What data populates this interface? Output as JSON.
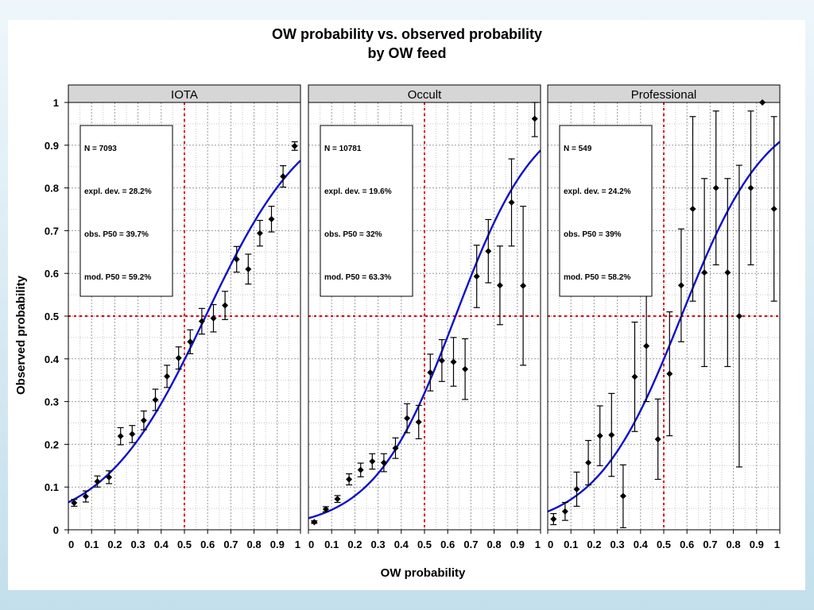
{
  "chart_data": {
    "type": "scatter",
    "title": "OW  probability vs. observed probability",
    "subtitle": "by OW feed",
    "xlabel": "OW probability",
    "ylabel": "Observed probability",
    "xlim": [
      0,
      1
    ],
    "ylim": [
      0,
      1
    ],
    "x_ticks": [
      "0",
      "0.1",
      "0.2",
      "0.3",
      "0.4",
      "0.5",
      "0.6",
      "0.7",
      "0.8",
      "0.9",
      "1"
    ],
    "y_ticks": [
      "0",
      "0.1",
      "0.2",
      "0.3",
      "0.4",
      "0.5",
      "0.6",
      "0.7",
      "0.8",
      "0.9",
      "1"
    ],
    "grid": true,
    "reference_lines": {
      "x": 0.5,
      "y": 0.5,
      "color": "#e00000"
    },
    "colors": {
      "points": "#000000",
      "curve": "#1010c8",
      "strip": "#d6d6d6",
      "reference": "#e00000"
    },
    "panels": [
      {
        "name": "IOTA",
        "stats": [
          "N = 7093",
          "expl. dev. = 28.2%",
          "obs. P50 = 39.7%",
          "mod. P50 = 59.2%"
        ],
        "curve": {
          "intercept": -2.68,
          "slope": 4.53
        },
        "points": [
          {
            "x": 0.025,
            "y": 0.063,
            "lo": 0.055,
            "hi": 0.071
          },
          {
            "x": 0.075,
            "y": 0.078,
            "lo": 0.065,
            "hi": 0.091
          },
          {
            "x": 0.125,
            "y": 0.113,
            "lo": 0.1,
            "hi": 0.126
          },
          {
            "x": 0.175,
            "y": 0.123,
            "lo": 0.108,
            "hi": 0.138
          },
          {
            "x": 0.225,
            "y": 0.219,
            "lo": 0.199,
            "hi": 0.239
          },
          {
            "x": 0.275,
            "y": 0.224,
            "lo": 0.204,
            "hi": 0.244
          },
          {
            "x": 0.325,
            "y": 0.256,
            "lo": 0.234,
            "hi": 0.278
          },
          {
            "x": 0.375,
            "y": 0.304,
            "lo": 0.279,
            "hi": 0.329
          },
          {
            "x": 0.425,
            "y": 0.359,
            "lo": 0.333,
            "hi": 0.385
          },
          {
            "x": 0.475,
            "y": 0.402,
            "lo": 0.376,
            "hi": 0.428
          },
          {
            "x": 0.525,
            "y": 0.44,
            "lo": 0.412,
            "hi": 0.468
          },
          {
            "x": 0.575,
            "y": 0.488,
            "lo": 0.458,
            "hi": 0.518
          },
          {
            "x": 0.625,
            "y": 0.495,
            "lo": 0.463,
            "hi": 0.527
          },
          {
            "x": 0.675,
            "y": 0.525,
            "lo": 0.492,
            "hi": 0.558
          },
          {
            "x": 0.725,
            "y": 0.633,
            "lo": 0.603,
            "hi": 0.663
          },
          {
            "x": 0.775,
            "y": 0.61,
            "lo": 0.575,
            "hi": 0.645
          },
          {
            "x": 0.825,
            "y": 0.694,
            "lo": 0.664,
            "hi": 0.724
          },
          {
            "x": 0.875,
            "y": 0.727,
            "lo": 0.697,
            "hi": 0.757
          },
          {
            "x": 0.925,
            "y": 0.827,
            "lo": 0.802,
            "hi": 0.852
          },
          {
            "x": 0.975,
            "y": 0.898,
            "lo": 0.888,
            "hi": 0.908
          }
        ]
      },
      {
        "name": "Occult",
        "stats": [
          "N = 10781",
          "expl. dev. = 19.6%",
          "obs. P50 = 32%",
          "mod. P50 = 63.3%"
        ],
        "curve": {
          "intercept": -3.58,
          "slope": 5.65
        },
        "points": [
          {
            "x": 0.025,
            "y": 0.018,
            "lo": 0.015,
            "hi": 0.021
          },
          {
            "x": 0.075,
            "y": 0.048,
            "lo": 0.042,
            "hi": 0.054
          },
          {
            "x": 0.125,
            "y": 0.072,
            "lo": 0.064,
            "hi": 0.08
          },
          {
            "x": 0.175,
            "y": 0.118,
            "lo": 0.105,
            "hi": 0.131
          },
          {
            "x": 0.225,
            "y": 0.14,
            "lo": 0.124,
            "hi": 0.156
          },
          {
            "x": 0.275,
            "y": 0.16,
            "lo": 0.142,
            "hi": 0.178
          },
          {
            "x": 0.325,
            "y": 0.157,
            "lo": 0.136,
            "hi": 0.178
          },
          {
            "x": 0.375,
            "y": 0.191,
            "lo": 0.167,
            "hi": 0.215
          },
          {
            "x": 0.425,
            "y": 0.261,
            "lo": 0.227,
            "hi": 0.295
          },
          {
            "x": 0.475,
            "y": 0.252,
            "lo": 0.213,
            "hi": 0.291
          },
          {
            "x": 0.525,
            "y": 0.368,
            "lo": 0.325,
            "hi": 0.411
          },
          {
            "x": 0.575,
            "y": 0.396,
            "lo": 0.347,
            "hi": 0.445
          },
          {
            "x": 0.625,
            "y": 0.393,
            "lo": 0.336,
            "hi": 0.45
          },
          {
            "x": 0.675,
            "y": 0.376,
            "lo": 0.305,
            "hi": 0.447
          },
          {
            "x": 0.725,
            "y": 0.593,
            "lo": 0.52,
            "hi": 0.666
          },
          {
            "x": 0.775,
            "y": 0.652,
            "lo": 0.578,
            "hi": 0.726
          },
          {
            "x": 0.825,
            "y": 0.572,
            "lo": 0.48,
            "hi": 0.664
          },
          {
            "x": 0.875,
            "y": 0.766,
            "lo": 0.664,
            "hi": 0.868
          },
          {
            "x": 0.925,
            "y": 0.571,
            "lo": 0.385,
            "hi": 0.757
          },
          {
            "x": 0.975,
            "y": 0.962,
            "lo": 0.92,
            "hi": 1.0
          }
        ]
      },
      {
        "name": "Professional",
        "stats": [
          "N = 549",
          "expl. dev. = 24.2%",
          "obs. P50 = 39%",
          "mod. P50 = 58.2%"
        ],
        "curve": {
          "intercept": -3.11,
          "slope": 5.4
        },
        "points": [
          {
            "x": 0.025,
            "y": 0.025,
            "lo": 0.012,
            "hi": 0.038
          },
          {
            "x": 0.075,
            "y": 0.043,
            "lo": 0.022,
            "hi": 0.064
          },
          {
            "x": 0.125,
            "y": 0.095,
            "lo": 0.055,
            "hi": 0.135
          },
          {
            "x": 0.175,
            "y": 0.157,
            "lo": 0.105,
            "hi": 0.209
          },
          {
            "x": 0.225,
            "y": 0.22,
            "lo": 0.15,
            "hi": 0.29
          },
          {
            "x": 0.275,
            "y": 0.222,
            "lo": 0.125,
            "hi": 0.319
          },
          {
            "x": 0.325,
            "y": 0.079,
            "lo": 0.005,
            "hi": 0.152
          },
          {
            "x": 0.375,
            "y": 0.358,
            "lo": 0.23,
            "hi": 0.486
          },
          {
            "x": 0.425,
            "y": 0.43,
            "lo": 0.3,
            "hi": 0.56
          },
          {
            "x": 0.475,
            "y": 0.212,
            "lo": 0.118,
            "hi": 0.306
          },
          {
            "x": 0.525,
            "y": 0.365,
            "lo": 0.22,
            "hi": 0.51
          },
          {
            "x": 0.575,
            "y": 0.572,
            "lo": 0.44,
            "hi": 0.704
          },
          {
            "x": 0.625,
            "y": 0.751,
            "lo": 0.535,
            "hi": 0.967
          },
          {
            "x": 0.675,
            "y": 0.602,
            "lo": 0.382,
            "hi": 0.822
          },
          {
            "x": 0.725,
            "y": 0.8,
            "lo": 0.62,
            "hi": 0.98
          },
          {
            "x": 0.775,
            "y": 0.602,
            "lo": 0.382,
            "hi": 0.822
          },
          {
            "x": 0.825,
            "y": 0.5,
            "lo": 0.147,
            "hi": 0.853
          },
          {
            "x": 0.875,
            "y": 0.8,
            "lo": 0.62,
            "hi": 0.98
          },
          {
            "x": 0.925,
            "y": 1.0,
            "lo": 1.0,
            "hi": 1.0
          },
          {
            "x": 0.975,
            "y": 0.751,
            "lo": 0.535,
            "hi": 0.967
          }
        ]
      }
    ]
  }
}
